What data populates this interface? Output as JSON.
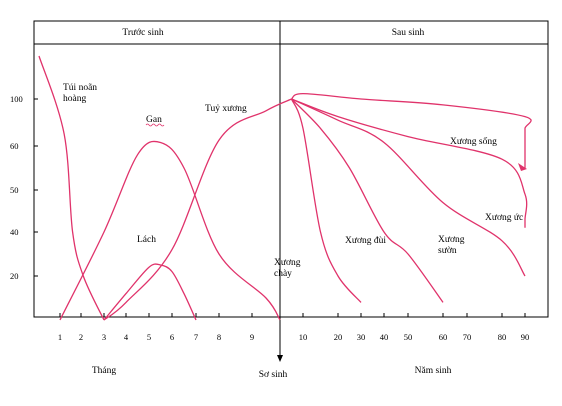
{
  "chart_data": {
    "type": "line",
    "header": {
      "left": "Trước sinh",
      "right": "Sau sinh"
    },
    "y_ticks": [
      "100",
      "60",
      "50",
      "40",
      "20"
    ],
    "x_ticks_before": [
      "1",
      "2",
      "3",
      "4",
      "5",
      "6",
      "7",
      "8",
      "9"
    ],
    "x_ticks_after": [
      "10",
      "20",
      "30",
      "40",
      "50",
      "60",
      "70",
      "80",
      "90"
    ],
    "bottom_labels": {
      "months": "Tháng",
      "birth": "Sơ sinh",
      "years": "Năm sinh"
    },
    "line_color": "#e0336b",
    "series": [
      {
        "name": "Túi noãn hoàng",
        "line2": "hoàng",
        "points": [
          [
            0.65,
            108
          ],
          [
            1.2,
            70
          ],
          [
            1.6,
            40
          ],
          [
            2.1,
            20
          ],
          [
            3,
            0
          ]
        ]
      },
      {
        "name": "Gan",
        "points": [
          [
            1,
            0
          ],
          [
            3,
            40
          ],
          [
            4.5,
            58
          ],
          [
            5.5,
            63
          ],
          [
            6.5,
            55
          ],
          [
            8,
            30
          ],
          [
            9.5,
            10
          ],
          [
            10,
            0
          ]
        ]
      },
      {
        "name": "Lách",
        "points": [
          [
            3,
            0
          ],
          [
            4,
            12
          ],
          [
            5,
            24
          ],
          [
            5.5,
            25
          ],
          [
            6,
            22
          ],
          [
            6.5,
            12
          ],
          [
            7,
            0
          ]
        ]
      },
      {
        "name": "Tuỷ xương",
        "points": [
          [
            3,
            0
          ],
          [
            4,
            8
          ],
          [
            6,
            32
          ],
          [
            8,
            65
          ],
          [
            9.5,
            90
          ],
          [
            10.5,
            100
          ]
        ]
      },
      {
        "name": "Xương chày",
        "points": [
          [
            10.5,
            100
          ],
          [
            11,
            75
          ],
          [
            11.5,
            40
          ],
          [
            12,
            20
          ],
          [
            13,
            8
          ]
        ]
      },
      {
        "name": "Xương đùi",
        "points": [
          [
            10.5,
            100
          ],
          [
            11.5,
            75
          ],
          [
            12.5,
            55
          ],
          [
            14,
            40
          ],
          [
            15,
            30
          ],
          [
            16,
            8
          ]
        ]
      },
      {
        "name": "Xương sườn",
        "points": [
          [
            10.5,
            100
          ],
          [
            12,
            82
          ],
          [
            14,
            63
          ],
          [
            16,
            47
          ],
          [
            18,
            36
          ],
          [
            21,
            20
          ]
        ]
      },
      {
        "name": "Xương ức",
        "points": [
          [
            10.5,
            100
          ],
          [
            12,
            85
          ],
          [
            15,
            68
          ],
          [
            18,
            57
          ],
          [
            20,
            49
          ],
          [
            22,
            43
          ],
          [
            24,
            41
          ]
        ]
      },
      {
        "name": "Xương sống",
        "points": [
          [
            10.5,
            100
          ],
          [
            11,
            101
          ],
          [
            13,
            100
          ],
          [
            16,
            95
          ],
          [
            19,
            85
          ],
          [
            21,
            75
          ],
          [
            22.5,
            65
          ],
          [
            24,
            58
          ],
          [
            25,
            55
          ]
        ]
      }
    ],
    "series_name_parts": {
      "Túi noãn hoàng": [
        "Túi noãn",
        "hoàng"
      ],
      "Xương chày": [
        "Xương",
        "chày"
      ],
      "Xương sườn": [
        "Xương",
        "sườn"
      ]
    }
  }
}
